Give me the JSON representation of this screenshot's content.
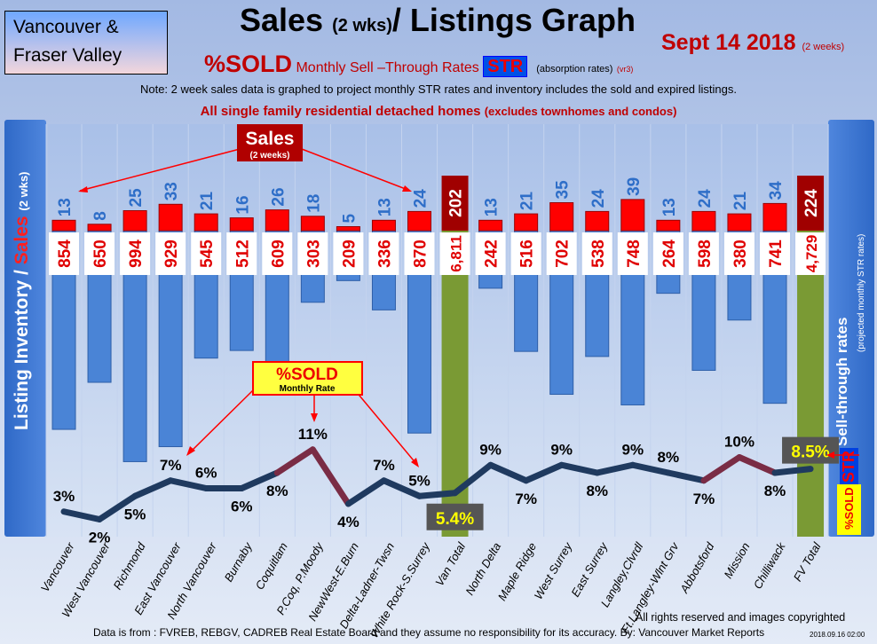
{
  "header": {
    "region_line1": "Vancouver &",
    "region_line2": "Fraser Valley",
    "title_a": "Sales",
    "title_b": "(2 wks)",
    "title_c": "/ Listings Graph",
    "date": "Sept 14 2018",
    "date_note": "(2 weeks)",
    "sub_sold": "%SOLD",
    "sub_rates": "Monthly Sell –Through Rates",
    "sub_str": "STR",
    "sub_abs": "(absorption rates)",
    "sub_vr": "(vr3)",
    "note": "Note: 2 week sales data is graphed to project monthly STR rates and inventory includes the sold and expired listings.",
    "family": "All single family residential detached homes",
    "family_note": "(excludes townhomes and condos)"
  },
  "left_panel": {
    "a": "Listing Inventory /",
    "b": "Sales",
    "c": "(2 wks)"
  },
  "right_panel": {
    "a": "Sell-through rates",
    "b": "(projected monthly STR rates)",
    "str": "STR",
    "sold": "%SOLD"
  },
  "callouts": {
    "sales": "Sales",
    "sales_sub": "(2 weeks)",
    "sold": "%SOLD",
    "sold_sub": "Monthly Rate"
  },
  "footer": {
    "copyright": "All rights reserved and  images copyrighted",
    "source": "Data is from : FVREB, REBGV, CADREB Real Estate Board and they assume no responsibility for its accuracy. By: Vancouver Market Reports",
    "stamp": "2018.09.16 02:00"
  },
  "colors": {
    "sales": "#ff0000",
    "listings": "#4a84d6",
    "total": "#7a9a34",
    "line": "#1f3a5f",
    "peak": "#c0303a"
  },
  "chart_data": {
    "type": "bar",
    "title": "Sales (2 wks)/ Listings Graph",
    "categories": [
      "Vancouver",
      "West Vancouver",
      "Richmond",
      "East Vancouver",
      "North Vancouver",
      "Burnaby",
      "Coquitlam",
      "P.Coq, P.Moody",
      "NewWest-E.Burn",
      "Delta-Ladner-Twsn",
      "White Rock-S.Surrey",
      "Van Total",
      "North Delta",
      "Maple Ridge",
      "West Surrey",
      "East Surrey",
      "Langley,Clvrdl",
      "Ft.Langley-Wlnt Grv",
      "Abbotsford",
      "Mission",
      "Chilliwack",
      "FV Total"
    ],
    "series": [
      {
        "name": "Sales (2 weeks)",
        "values": [
          13,
          8,
          25,
          33,
          21,
          16,
          26,
          18,
          5,
          13,
          24,
          202,
          13,
          21,
          35,
          24,
          39,
          13,
          24,
          21,
          34,
          224
        ]
      },
      {
        "name": "Listing Inventory",
        "values": [
          854,
          650,
          994,
          929,
          545,
          512,
          609,
          303,
          209,
          336,
          870,
          6811,
          242,
          516,
          702,
          538,
          748,
          264,
          598,
          380,
          741,
          4729
        ],
        "labels": [
          "854",
          "650",
          "994",
          "929",
          "545",
          "512",
          "609",
          "303",
          "209",
          "336",
          "870",
          "6,811",
          "242",
          "516",
          "702",
          "538",
          "748",
          "264",
          "598",
          "380",
          "741",
          "4,729"
        ]
      },
      {
        "name": "%SOLD Monthly STR",
        "values": [
          3,
          2,
          5,
          7,
          6,
          6,
          8,
          11,
          4,
          7,
          5,
          5.4,
          9,
          7,
          9,
          8,
          9,
          8,
          7,
          10,
          8,
          8.5
        ],
        "labels": [
          "3%",
          "2%",
          "5%",
          "7%",
          "6%",
          "6%",
          "8%",
          "11%",
          "4%",
          "7%",
          "5%",
          "5.4%",
          "9%",
          "7%",
          "9%",
          "8%",
          "9%",
          "8%",
          "7%",
          "10%",
          "8%",
          "8.5%"
        ]
      }
    ]
  }
}
